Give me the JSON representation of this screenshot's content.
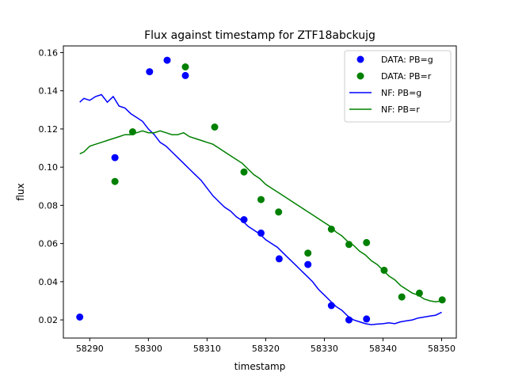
{
  "chart_data": {
    "type": "scatter",
    "title": "Flux against timestamp for ZTF18abckujg",
    "xlabel": "timestamp",
    "ylabel": "flux",
    "xlim": [
      58285.5,
      58352.5
    ],
    "ylim": [
      0.0105,
      0.1635
    ],
    "xticks": [
      58290,
      58300,
      58310,
      58320,
      58330,
      58340,
      58350
    ],
    "yticks": [
      0.02,
      0.04,
      0.06,
      0.08,
      0.1,
      0.12,
      0.14,
      0.16
    ],
    "xtick_labels": [
      "58290",
      "58300",
      "58310",
      "58320",
      "58330",
      "58340",
      "58350"
    ],
    "ytick_labels": [
      "0.02",
      "0.04",
      "0.06",
      "0.08",
      "0.10",
      "0.12",
      "0.14",
      "0.16"
    ],
    "grid": false,
    "legend_position": "top-right",
    "series": [
      {
        "name": "DATA: PB=g",
        "kind": "scatter",
        "color": "#0000ff",
        "x": [
          58288.3,
          58294.3,
          58300.2,
          58303.2,
          58306.3,
          58316.3,
          58319.2,
          58322.3,
          58327.2,
          58331.2,
          58334.2,
          58337.2
        ],
        "y": [
          0.0215,
          0.105,
          0.15,
          0.156,
          0.148,
          0.0725,
          0.0655,
          0.052,
          0.049,
          0.0275,
          0.02,
          0.0205
        ]
      },
      {
        "name": "DATA: PB=r",
        "kind": "scatter",
        "color": "#008000",
        "x": [
          58294.3,
          58297.3,
          58306.3,
          58311.3,
          58316.3,
          58319.2,
          58322.2,
          58327.2,
          58331.2,
          58334.2,
          58337.2,
          58340.2,
          58343.2,
          58346.2,
          58350.1
        ],
        "y": [
          0.0925,
          0.1185,
          0.1525,
          0.121,
          0.0975,
          0.083,
          0.0765,
          0.055,
          0.0675,
          0.0595,
          0.0605,
          0.046,
          0.032,
          0.034,
          0.0305
        ]
      },
      {
        "name": "NF: PB=g",
        "kind": "line",
        "color": "#0000ff",
        "x": [
          58288.3,
          58289,
          58290,
          58291,
          58292,
          58293,
          58294,
          58295,
          58296,
          58297,
          58298,
          58299,
          58300,
          58301,
          58302,
          58303,
          58304,
          58305,
          58306,
          58307,
          58308,
          58309,
          58310,
          58311,
          58312,
          58313,
          58314,
          58315,
          58316,
          58317,
          58318,
          58319,
          58320,
          58321,
          58322,
          58323,
          58324,
          58325,
          58326,
          58327,
          58328,
          58329,
          58330,
          58331,
          58332,
          58333,
          58334,
          58335,
          58336,
          58337,
          58338,
          58339,
          58340,
          58341,
          58342,
          58343,
          58344,
          58345,
          58346,
          58347,
          58348,
          58349,
          58350
        ],
        "y": [
          0.134,
          0.136,
          0.135,
          0.137,
          0.138,
          0.134,
          0.137,
          0.132,
          0.131,
          0.128,
          0.126,
          0.124,
          0.12,
          0.117,
          0.113,
          0.111,
          0.108,
          0.105,
          0.102,
          0.099,
          0.096,
          0.093,
          0.089,
          0.085,
          0.082,
          0.079,
          0.077,
          0.074,
          0.072,
          0.069,
          0.067,
          0.065,
          0.062,
          0.06,
          0.058,
          0.055,
          0.052,
          0.049,
          0.046,
          0.043,
          0.04,
          0.036,
          0.033,
          0.03,
          0.027,
          0.025,
          0.022,
          0.02,
          0.019,
          0.018,
          0.0175,
          0.0178,
          0.018,
          0.0185,
          0.018,
          0.019,
          0.0195,
          0.02,
          0.021,
          0.0215,
          0.022,
          0.0225,
          0.024
        ]
      },
      {
        "name": "NF: PB=r",
        "kind": "line",
        "color": "#008000",
        "x": [
          58288.3,
          58289,
          58290,
          58291,
          58292,
          58293,
          58294,
          58295,
          58296,
          58297,
          58298,
          58299,
          58300,
          58301,
          58302,
          58303,
          58304,
          58305,
          58306,
          58307,
          58308,
          58309,
          58310,
          58311,
          58312,
          58313,
          58314,
          58315,
          58316,
          58317,
          58318,
          58319,
          58320,
          58321,
          58322,
          58323,
          58324,
          58325,
          58326,
          58327,
          58328,
          58329,
          58330,
          58331,
          58332,
          58333,
          58334,
          58335,
          58336,
          58337,
          58338,
          58339,
          58340,
          58341,
          58342,
          58343,
          58344,
          58345,
          58346,
          58347,
          58348,
          58349,
          58350
        ],
        "y": [
          0.107,
          0.108,
          0.111,
          0.112,
          0.113,
          0.114,
          0.115,
          0.116,
          0.117,
          0.117,
          0.118,
          0.119,
          0.118,
          0.118,
          0.119,
          0.118,
          0.117,
          0.117,
          0.118,
          0.116,
          0.115,
          0.114,
          0.113,
          0.112,
          0.11,
          0.108,
          0.106,
          0.104,
          0.102,
          0.099,
          0.096,
          0.094,
          0.091,
          0.089,
          0.087,
          0.085,
          0.083,
          0.081,
          0.079,
          0.077,
          0.075,
          0.073,
          0.071,
          0.069,
          0.066,
          0.064,
          0.061,
          0.059,
          0.056,
          0.054,
          0.051,
          0.049,
          0.046,
          0.043,
          0.041,
          0.038,
          0.036,
          0.034,
          0.033,
          0.031,
          0.03,
          0.0295,
          0.03
        ]
      }
    ]
  }
}
